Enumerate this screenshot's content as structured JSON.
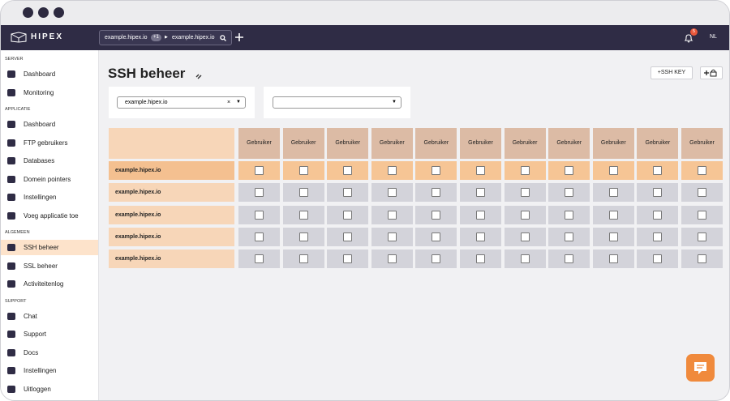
{
  "window": {
    "brand": "HIPEX",
    "breadcrumb": {
      "app": "example.hipex.io",
      "badge": "+1",
      "server": "example.hipex.io"
    },
    "notifications": "5",
    "language": "NL"
  },
  "sidebar": {
    "sections": [
      {
        "title": "SERVER",
        "items": [
          {
            "label": "Dashboard"
          },
          {
            "label": "Monitoring"
          }
        ]
      },
      {
        "title": "APPLICATIE",
        "items": [
          {
            "label": "Dashboard"
          },
          {
            "label": "FTP gebruikers"
          },
          {
            "label": "Databases"
          },
          {
            "label": "Domein pointers"
          },
          {
            "label": "Instellingen"
          },
          {
            "label": "Voeg applicatie toe"
          }
        ]
      },
      {
        "title": "ALGEMEEN",
        "items": [
          {
            "label": "SSH beheer",
            "active": true
          },
          {
            "label": "SSL beheer"
          },
          {
            "label": "Activiteitenlog"
          }
        ]
      },
      {
        "title": "SUPPORT",
        "items": [
          {
            "label": "Chat"
          },
          {
            "label": "Support"
          },
          {
            "label": "Docs"
          },
          {
            "label": "Instellingen"
          },
          {
            "label": "Uitloggen"
          }
        ]
      }
    ]
  },
  "page": {
    "title": "SSH beheer",
    "add_key_button": "+SSH KEY",
    "filter_application": "example.hipex.io"
  },
  "table": {
    "columns": [
      "Gebruiker",
      "Gebruiker",
      "Gebruiker",
      "Gebruiker",
      "Gebruiker",
      "Gebruiker",
      "Gebruiker",
      "Gebruiker",
      "Gebruiker",
      "Gebruiker",
      "Gebruiker"
    ],
    "rows": [
      {
        "label": "example.hipex.io",
        "highlighted": true,
        "checked": [
          false,
          false,
          false,
          false,
          false,
          false,
          false,
          false,
          false,
          false,
          false
        ]
      },
      {
        "label": "example.hipex.io",
        "checked": [
          false,
          false,
          false,
          false,
          false,
          false,
          false,
          false,
          false,
          false,
          false
        ]
      },
      {
        "label": "example.hipex.io",
        "checked": [
          false,
          false,
          false,
          false,
          false,
          false,
          false,
          false,
          false,
          false,
          false
        ]
      },
      {
        "label": "example.hipex.io",
        "checked": [
          false,
          false,
          false,
          false,
          false,
          false,
          false,
          false,
          false,
          false,
          false
        ]
      },
      {
        "label": "example.hipex.io",
        "checked": [
          false,
          false,
          false,
          false,
          false,
          false,
          false,
          false,
          false,
          false,
          false
        ]
      }
    ]
  }
}
